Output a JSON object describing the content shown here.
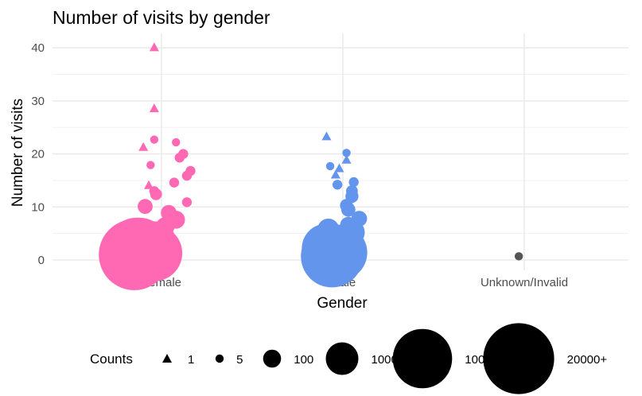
{
  "chart_data": {
    "type": "scatter",
    "title": "Number of visits by gender",
    "xlabel": "Gender",
    "ylabel": "Number of visits",
    "categories": [
      "Female",
      "Male",
      "Unknown/Invalid"
    ],
    "ylim": [
      -2,
      42
    ],
    "yticks": [
      0,
      10,
      20,
      30,
      40
    ],
    "grid": true,
    "legend": {
      "title": "Counts",
      "position": "bottom",
      "entries": [
        {
          "label": "1",
          "shape": "triangle",
          "size": 1
        },
        {
          "label": "5",
          "shape": "circle",
          "size": 5
        },
        {
          "label": "100",
          "shape": "circle",
          "size": 100
        },
        {
          "label": "1000",
          "shape": "circle",
          "size": 1000
        },
        {
          "label": "10000",
          "shape": "circle",
          "size": 10000
        },
        {
          "label": "20000+",
          "shape": "circle",
          "size": 20000
        }
      ]
    },
    "colors": {
      "Female": "#ff69b4",
      "Male": "#6495ed",
      "Unknown/Invalid": "#555555"
    },
    "series": [
      {
        "category": "Female",
        "points": [
          {
            "x": -0.04,
            "y": 40,
            "count": 1
          },
          {
            "x": -0.04,
            "y": 28.5,
            "count": 1
          },
          {
            "x": -0.04,
            "y": 22.7,
            "count": 5
          },
          {
            "x": -0.1,
            "y": 21.2,
            "count": 1
          },
          {
            "x": 0.08,
            "y": 22.2,
            "count": 5
          },
          {
            "x": 0.12,
            "y": 20,
            "count": 10
          },
          {
            "x": 0.1,
            "y": 19.3,
            "count": 10
          },
          {
            "x": -0.06,
            "y": 17.9,
            "count": 5
          },
          {
            "x": 0.16,
            "y": 16.8,
            "count": 10
          },
          {
            "x": 0.14,
            "y": 15.9,
            "count": 10
          },
          {
            "x": 0.07,
            "y": 14.6,
            "count": 10
          },
          {
            "x": -0.07,
            "y": 14,
            "count": 1
          },
          {
            "x": -0.04,
            "y": 13,
            "count": 10
          },
          {
            "x": -0.03,
            "y": 12.4,
            "count": 20
          },
          {
            "x": 0.14,
            "y": 10.9,
            "count": 10
          },
          {
            "x": -0.09,
            "y": 10.1,
            "count": 50
          },
          {
            "x": 0.04,
            "y": 8.9,
            "count": 60
          },
          {
            "x": 0.08,
            "y": 7.6,
            "count": 100
          },
          {
            "x": 0.02,
            "y": 6.3,
            "count": 120
          },
          {
            "x": -0.03,
            "y": 5.4,
            "count": 150
          },
          {
            "x": -0.05,
            "y": 4.3,
            "count": 800
          },
          {
            "x": -0.03,
            "y": 3.6,
            "count": 2000
          },
          {
            "x": -0.07,
            "y": 2.5,
            "count": 6000
          },
          {
            "x": -0.13,
            "y": 1.5,
            "count": 18000
          },
          {
            "x": -0.04,
            "y": 1.3,
            "count": 8000
          },
          {
            "x": -0.15,
            "y": 1,
            "count": 20000
          }
        ]
      },
      {
        "category": "Male",
        "points": [
          {
            "x": -0.09,
            "y": 23.2,
            "count": 1
          },
          {
            "x": 0.02,
            "y": 20.2,
            "count": 5
          },
          {
            "x": 0.02,
            "y": 18.8,
            "count": 1
          },
          {
            "x": -0.07,
            "y": 17.7,
            "count": 5
          },
          {
            "x": -0.02,
            "y": 17.2,
            "count": 1
          },
          {
            "x": -0.04,
            "y": 16,
            "count": 1
          },
          {
            "x": 0.06,
            "y": 14.7,
            "count": 10
          },
          {
            "x": -0.03,
            "y": 14.2,
            "count": 10
          },
          {
            "x": 0.05,
            "y": 13,
            "count": 20
          },
          {
            "x": 0.05,
            "y": 12,
            "count": 30
          },
          {
            "x": 0.02,
            "y": 10.3,
            "count": 30
          },
          {
            "x": 0.03,
            "y": 9.5,
            "count": 40
          },
          {
            "x": 0.09,
            "y": 7.8,
            "count": 60
          },
          {
            "x": 0.03,
            "y": 6.6,
            "count": 70
          },
          {
            "x": -0.08,
            "y": 5.8,
            "count": 200
          },
          {
            "x": 0.05,
            "y": 5.2,
            "count": 400
          },
          {
            "x": -0.03,
            "y": 4.3,
            "count": 300
          },
          {
            "x": -0.04,
            "y": 3.1,
            "count": 1500
          },
          {
            "x": -0.09,
            "y": 2.2,
            "count": 5000
          },
          {
            "x": -0.02,
            "y": 1.4,
            "count": 8000
          },
          {
            "x": -0.06,
            "y": 0.7,
            "count": 12000
          }
        ]
      },
      {
        "category": "Unknown/Invalid",
        "points": [
          {
            "x": -0.03,
            "y": 0.7,
            "count": 5
          }
        ]
      }
    ]
  }
}
